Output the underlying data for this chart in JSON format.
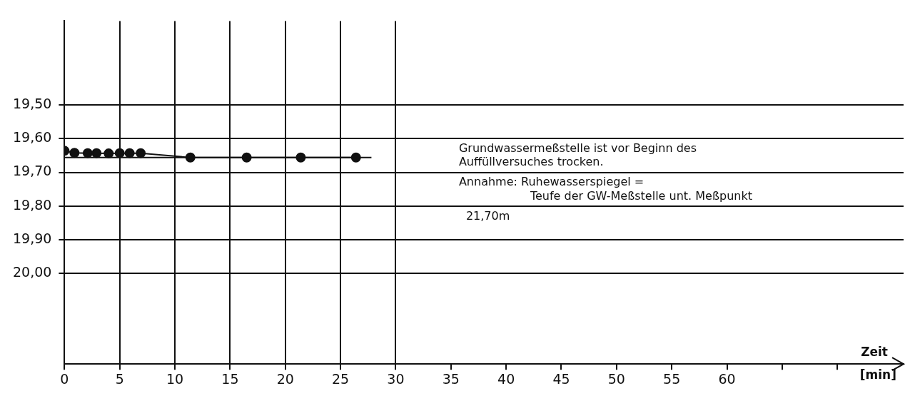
{
  "chart_data": {
    "type": "scatter",
    "xlabel": "Zeit [min]",
    "series": [
      {
        "type": "line",
        "color": "#111111",
        "marker": "circle",
        "x": [
          0,
          0.9,
          2.1,
          2.9,
          4,
          5,
          5.9,
          6.9,
          11.4,
          16.5,
          21.4,
          26.4
        ],
        "values": [
          19.636,
          19.642,
          19.643,
          19.643,
          19.644,
          19.643,
          19.643,
          19.643,
          19.656,
          19.656,
          19.656,
          19.656
        ]
      },
      {
        "type": "line",
        "color": "#111111",
        "marker": "none",
        "x": [
          0,
          27.8
        ],
        "values": [
          19.656,
          19.656
        ]
      }
    ],
    "xlim": [
      0,
      76
    ],
    "xticks": [
      0,
      5,
      10,
      15,
      20,
      25,
      30,
      35,
      40,
      45,
      50,
      55,
      60,
      {
        "value": 65,
        "label": null
      },
      {
        "value": 70,
        "label": null
      }
    ],
    "ylim": [
      20.27,
      19.25
    ],
    "yticks": [
      {
        "value": 19.5,
        "label": "19,50"
      },
      {
        "value": 19.6,
        "label": "19,60"
      },
      {
        "value": 19.7,
        "label": "19,70"
      },
      {
        "value": 19.8,
        "label": "19,80"
      },
      {
        "value": 19.9,
        "label": "19,90"
      },
      {
        "value": 20.0,
        "label": "20,00"
      }
    ],
    "grid": true,
    "legend": false,
    "annotations": [
      "Grundwassermeßstelle ist vor Beginn des",
      "Auffüllversuches trocken.",
      "Annahme: Ruhewasserspiegel =",
      "Teufe der GW-Meßstelle unt. Meßpunkt",
      "21,70m"
    ]
  }
}
